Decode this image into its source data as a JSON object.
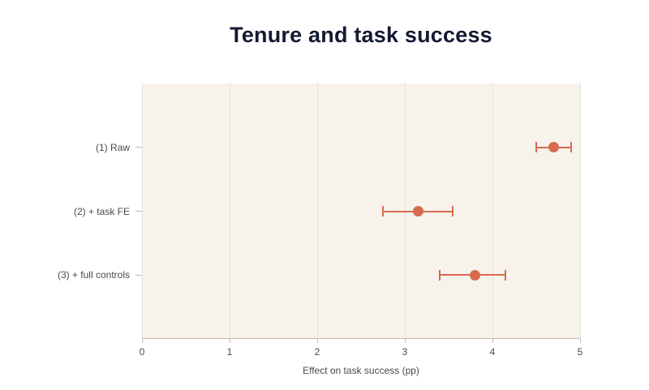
{
  "chart_data": {
    "type": "scatter",
    "subtype": "coefficient-dot-whisker",
    "title": "Tenure and task success",
    "xlabel": "Effect on task success (pp)",
    "ylabel": "",
    "xlim": [
      0,
      5
    ],
    "xticks": [
      0,
      1,
      2,
      3,
      4,
      5
    ],
    "grid": true,
    "legend": false,
    "categories": [
      "(1) Raw",
      "(2) + task FE",
      "(3) + full controls"
    ],
    "series": [
      {
        "name": "estimate",
        "values": [
          4.7,
          3.15,
          3.8
        ],
        "ci_low": [
          4.5,
          2.75,
          3.4
        ],
        "ci_high": [
          4.9,
          3.55,
          4.15
        ]
      }
    ],
    "colors": {
      "point": "#d96a4f",
      "panel_bg": "#f7f3ec",
      "gridline": "#e7e1d7",
      "axis": "#c1bbb0",
      "text": "#4a4a4a",
      "title": "#141a33"
    }
  }
}
